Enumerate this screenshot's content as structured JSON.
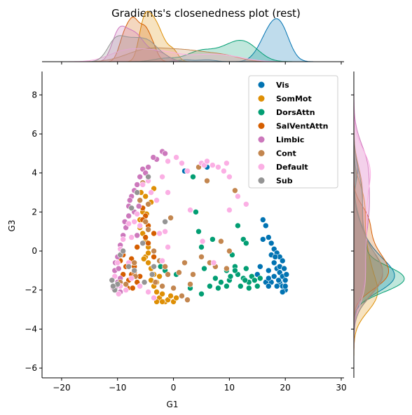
{
  "chart_data": {
    "type": "scatter",
    "title": "Gradients's closenedness plot (rest)",
    "xlabel": "G1",
    "ylabel": "G3",
    "xlim": [
      -23.5,
      30.5
    ],
    "ylim": [
      -6.5,
      9.2
    ],
    "xticks": [
      -20,
      -10,
      0,
      10,
      20,
      30
    ],
    "yticks": [
      -6,
      -4,
      -2,
      0,
      2,
      4,
      6,
      8
    ],
    "grid": false,
    "legend_position": "top-right",
    "marginals": "kde",
    "series": [
      {
        "name": "Vis",
        "color": "#0173b2",
        "points": [
          [
            16,
            1.6
          ],
          [
            16.5,
            1.3
          ],
          [
            17,
            0.7
          ],
          [
            17.5,
            0.4
          ],
          [
            18,
            0.1
          ],
          [
            18.5,
            -0.1
          ],
          [
            19,
            -0.3
          ],
          [
            19.5,
            -0.5
          ],
          [
            18,
            -0.6
          ],
          [
            18.5,
            -0.9
          ],
          [
            19,
            -1.1
          ],
          [
            19.5,
            -1.3
          ],
          [
            20,
            -1.5
          ],
          [
            19,
            -1.6
          ],
          [
            19.5,
            -1.8
          ],
          [
            20,
            -2.0
          ],
          [
            18.5,
            -1.8
          ],
          [
            17.5,
            -1.6
          ],
          [
            17,
            -1.0
          ],
          [
            18,
            -1.3
          ],
          [
            19.5,
            -2.1
          ],
          [
            20,
            -1.8
          ],
          [
            16.5,
            -1.6
          ],
          [
            17,
            -1.4
          ],
          [
            15.5,
            -0.8
          ],
          [
            16,
            0.6
          ],
          [
            17.5,
            -0.2
          ],
          [
            19,
            -0.8
          ],
          [
            18.8,
            -1.5
          ],
          [
            20.2,
            -1.2
          ],
          [
            15,
            -1.2
          ],
          [
            17,
            -1.8
          ],
          [
            18.2,
            -0.3
          ],
          [
            19.8,
            -0.9
          ],
          [
            6,
            4.3
          ],
          [
            2,
            4.1
          ]
        ]
      },
      {
        "name": "SomMot",
        "color": "#de8f05",
        "points": [
          [
            -6,
            1.2
          ],
          [
            -5.5,
            0.9
          ],
          [
            -5,
            0.5
          ],
          [
            -4.5,
            0.2
          ],
          [
            -5,
            -0.3
          ],
          [
            -4.5,
            -0.6
          ],
          [
            -4,
            -0.9
          ],
          [
            -3.5,
            -1.2
          ],
          [
            -4,
            -1.5
          ],
          [
            -3.5,
            -1.8
          ],
          [
            -3,
            -2.1
          ],
          [
            -2.5,
            -2.4
          ],
          [
            -1.5,
            -2.6
          ],
          [
            -1,
            -2.5
          ],
          [
            -0.5,
            -2.3
          ],
          [
            0,
            -2.6
          ],
          [
            0.5,
            -2.4
          ],
          [
            -2,
            -2.2
          ],
          [
            -3,
            -1.6
          ],
          [
            -2.5,
            -1.3
          ],
          [
            -4,
            2.5
          ],
          [
            -5,
            2.8
          ],
          [
            -5.5,
            2.0
          ],
          [
            -6,
            1.6
          ],
          [
            -5.8,
            3.0
          ],
          [
            -3.5,
            3.2
          ],
          [
            -4.5,
            -0.1
          ],
          [
            -5.3,
            -0.4
          ],
          [
            -3,
            -2.6
          ],
          [
            -2,
            -2.6
          ],
          [
            -4.8,
            1.9
          ]
        ]
      },
      {
        "name": "DorsAttn",
        "color": "#029e73",
        "points": [
          [
            3.5,
            3.8
          ],
          [
            4,
            2.0
          ],
          [
            4.5,
            1.0
          ],
          [
            5,
            0.2
          ],
          [
            5.5,
            -0.9
          ],
          [
            6.5,
            -1.8
          ],
          [
            7.5,
            -1.4
          ],
          [
            8.5,
            -1.6
          ],
          [
            9.5,
            -1.0
          ],
          [
            10,
            -1.5
          ],
          [
            10.5,
            -0.2
          ],
          [
            11,
            -0.8
          ],
          [
            11.5,
            -1.2
          ],
          [
            12,
            -1.8
          ],
          [
            12.5,
            -1.4
          ],
          [
            13,
            -0.9
          ],
          [
            13.5,
            -1.6
          ],
          [
            14,
            -1.3
          ],
          [
            14.5,
            -1.5
          ],
          [
            15,
            -1.8
          ],
          [
            15.5,
            -1.4
          ],
          [
            11.5,
            1.3
          ],
          [
            12.5,
            0.6
          ],
          [
            13,
            0.4
          ],
          [
            9.5,
            -1.8
          ],
          [
            8,
            -1.9
          ],
          [
            10.2,
            -1.3
          ],
          [
            12.8,
            -1.5
          ],
          [
            13.5,
            -1.9
          ],
          [
            3,
            -1.9
          ],
          [
            0.5,
            -1.2
          ],
          [
            -1.5,
            -1.0
          ],
          [
            -2.3,
            -0.8
          ],
          [
            5,
            -2.2
          ],
          [
            7,
            0.6
          ],
          [
            11,
            -1.0
          ]
        ]
      },
      {
        "name": "SalVentAttn",
        "color": "#d55e00",
        "points": [
          [
            -9,
            -0.2
          ],
          [
            -9.5,
            -0.5
          ],
          [
            -8.5,
            -0.8
          ],
          [
            -9,
            -1.2
          ],
          [
            -8,
            -1.5
          ],
          [
            -7.5,
            -1.2
          ],
          [
            -7,
            -0.8
          ],
          [
            -7.5,
            -0.4
          ],
          [
            -6.5,
            -1.6
          ],
          [
            -6,
            -1.3
          ],
          [
            -8.2,
            -1.9
          ],
          [
            -7.3,
            -1.9
          ],
          [
            -5,
            1.8
          ],
          [
            -5.5,
            1.6
          ],
          [
            -4.5,
            1.3
          ],
          [
            -5,
            0.7
          ],
          [
            -4.5,
            0.4
          ],
          [
            -3.5,
            0.9
          ],
          [
            -5.5,
            2.2
          ],
          [
            -3.5,
            -0.3
          ],
          [
            -6.5,
            0.2
          ],
          [
            -7,
            -1.1
          ]
        ]
      },
      {
        "name": "Limbic",
        "color": "#cc78bc",
        "points": [
          [
            -7,
            3.1
          ],
          [
            -7.5,
            2.8
          ],
          [
            -6.5,
            3.4
          ],
          [
            -6,
            3.8
          ],
          [
            -5.5,
            4.2
          ],
          [
            -5,
            4.0
          ],
          [
            -4.5,
            4.3
          ],
          [
            -3,
            4.7
          ],
          [
            -2,
            5.1
          ],
          [
            -1.5,
            5.0
          ],
          [
            -8,
            1.8
          ],
          [
            -8.5,
            1.2
          ],
          [
            -9,
            0.8
          ],
          [
            -9.5,
            0.3
          ],
          [
            -10,
            -0.3
          ],
          [
            -10.5,
            -1.0
          ],
          [
            -10,
            -1.6
          ],
          [
            -9.5,
            -2.1
          ],
          [
            -8,
            2.3
          ],
          [
            -7,
            2.0
          ],
          [
            -6.5,
            0.8
          ],
          [
            -10.2,
            -1.8
          ],
          [
            -9.8,
            -0.9
          ],
          [
            -7.8,
            2.6
          ],
          [
            -6.2,
            2.3
          ],
          [
            -8.7,
            1.5
          ],
          [
            -9.5,
            -1.4
          ],
          [
            -10.4,
            -0.6
          ],
          [
            -3.6,
            4.8
          ]
        ]
      },
      {
        "name": "Cont",
        "color": "#c3864f",
        "points": [
          [
            -6,
            2.6
          ],
          [
            -5.5,
            3.5
          ],
          [
            -4.5,
            2.4
          ],
          [
            -5,
            1.5
          ],
          [
            -4.5,
            1.1
          ],
          [
            -3.5,
            0.0
          ],
          [
            -2.5,
            -0.5
          ],
          [
            -1.5,
            -0.8
          ],
          [
            -1,
            -1.2
          ],
          [
            1,
            -1.1
          ],
          [
            2,
            -0.6
          ],
          [
            3,
            -1.7
          ],
          [
            3.5,
            -1.2
          ],
          [
            5,
            -0.3
          ],
          [
            6.5,
            -0.6
          ],
          [
            7.5,
            -0.8
          ],
          [
            8.5,
            0.5
          ],
          [
            9.5,
            -0.9
          ],
          [
            10,
            0.0
          ],
          [
            11,
            3.1
          ],
          [
            4.5,
            4.3
          ],
          [
            6,
            3.6
          ],
          [
            -8.5,
            -1.7
          ],
          [
            -9.5,
            -1.6
          ],
          [
            -7,
            -0.6
          ],
          [
            -2,
            -1.8
          ],
          [
            0,
            -1.9
          ],
          [
            1.5,
            -2.3
          ],
          [
            2.5,
            -2.5
          ],
          [
            -3.2,
            -1.6
          ],
          [
            -0.5,
            1.7
          ],
          [
            -6.8,
            -1.3
          ]
        ]
      },
      {
        "name": "Default",
        "color": "#fbafe4",
        "points": [
          [
            -9,
            0.6
          ],
          [
            -9.5,
            0.1
          ],
          [
            -10,
            -0.6
          ],
          [
            -10.5,
            -1.3
          ],
          [
            -9.5,
            -1.8
          ],
          [
            -8.5,
            -2.0
          ],
          [
            -7.5,
            -1.4
          ],
          [
            -8,
            -0.6
          ],
          [
            -7.5,
            0.7
          ],
          [
            -8,
            1.4
          ],
          [
            -7,
            1.5
          ],
          [
            -6,
            1.3
          ],
          [
            -6.5,
            1.9
          ],
          [
            -5.5,
            3.4
          ],
          [
            -4.5,
            3.6
          ],
          [
            -4,
            3.0
          ],
          [
            -3,
            2.6
          ],
          [
            -2,
            3.8
          ],
          [
            -1,
            4.6
          ],
          [
            0.5,
            4.8
          ],
          [
            1.5,
            4.5
          ],
          [
            2.5,
            4.1
          ],
          [
            3,
            2.1
          ],
          [
            5,
            4.5
          ],
          [
            5.5,
            4.4
          ],
          [
            6,
            4.6
          ],
          [
            7,
            4.4
          ],
          [
            8,
            4.3
          ],
          [
            9,
            4.1
          ],
          [
            9.5,
            4.5
          ],
          [
            10,
            3.8
          ],
          [
            10,
            2.1
          ],
          [
            11.5,
            2.8
          ],
          [
            13,
            2.4
          ],
          [
            -1,
            0.2
          ],
          [
            -2,
            -0.5
          ],
          [
            -1.5,
            1.0
          ],
          [
            -2.5,
            0.9
          ],
          [
            -3.5,
            -2.4
          ],
          [
            -4.5,
            -2.1
          ],
          [
            -6,
            -1.8
          ],
          [
            7.2,
            -0.6
          ],
          [
            -10.8,
            -1.9
          ],
          [
            -9.8,
            -2.2
          ],
          [
            5.2,
            0.5
          ],
          [
            -1,
            3.0
          ]
        ]
      },
      {
        "name": "Sub",
        "color": "#949494",
        "points": [
          [
            -11,
            -1.5
          ],
          [
            -10.5,
            -2.0
          ],
          [
            -10,
            -1.7
          ],
          [
            -9.5,
            -0.2
          ],
          [
            -9,
            0.0
          ],
          [
            -8,
            -0.8
          ],
          [
            -7,
            -1.0
          ],
          [
            -6.5,
            3.0
          ],
          [
            -5.5,
            0.4
          ],
          [
            -4.5,
            3.8
          ],
          [
            -3.5,
            -0.8
          ],
          [
            -1.5,
            1.5
          ],
          [
            -7.5,
            2.2
          ],
          [
            -10.8,
            -1.8
          ],
          [
            -3.8,
            -1.2
          ],
          [
            -5.2,
            -1.6
          ]
        ]
      }
    ]
  }
}
